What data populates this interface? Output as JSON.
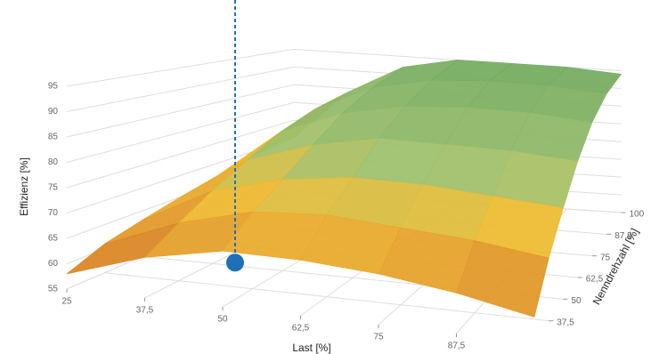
{
  "chart_data": {
    "type": "surface",
    "x_label": "Last [%]",
    "y_label": "Nenndrehzahl [%]",
    "z_label": "Effizienz [%]",
    "x": [
      25,
      37.5,
      50,
      62.5,
      75,
      87.5,
      100
    ],
    "y": [
      25,
      37.5,
      50,
      62.5,
      75,
      87.5,
      100
    ],
    "z": [
      [
        58,
        63,
        66,
        66,
        65,
        63,
        60
      ],
      [
        61,
        67,
        71,
        72,
        71,
        70,
        68
      ],
      [
        63,
        71,
        75,
        77,
        77,
        76,
        75
      ],
      [
        65,
        75,
        80,
        83,
        83,
        83,
        82
      ],
      [
        67,
        79,
        85,
        88,
        89,
        89,
        88
      ],
      [
        69,
        82,
        89,
        92,
        93,
        93,
        92
      ],
      [
        70,
        84,
        92,
        95,
        95,
        95,
        94
      ]
    ],
    "xlim": [
      25,
      100
    ],
    "ylim": [
      25,
      100
    ],
    "zlim": [
      55,
      95
    ],
    "xticks": [
      25,
      {
        "value": 37.5,
        "label": "37,5"
      },
      50,
      {
        "value": 62.5,
        "label": "62,5"
      },
      75,
      {
        "value": 87.5,
        "label": "87,5"
      }
    ],
    "yticks": [
      {
        "value": 37.5,
        "label": "37,5"
      },
      50,
      {
        "value": 62.5,
        "label": "62,5"
      },
      75,
      {
        "value": 87.5,
        "label": "87,5"
      },
      100
    ],
    "zticks": [
      55,
      60,
      65,
      70,
      75,
      80,
      85,
      90,
      95
    ],
    "grid": true,
    "colorscale": [
      [
        55,
        "#c4461c"
      ],
      [
        63,
        "#dc8a22"
      ],
      [
        72,
        "#f0bb2c"
      ],
      [
        80,
        "#9cbf6a"
      ],
      [
        95,
        "#6fa85c"
      ]
    ],
    "marker": {
      "x": 52,
      "y": 25,
      "z": 64,
      "color": "#1f6fba"
    }
  }
}
